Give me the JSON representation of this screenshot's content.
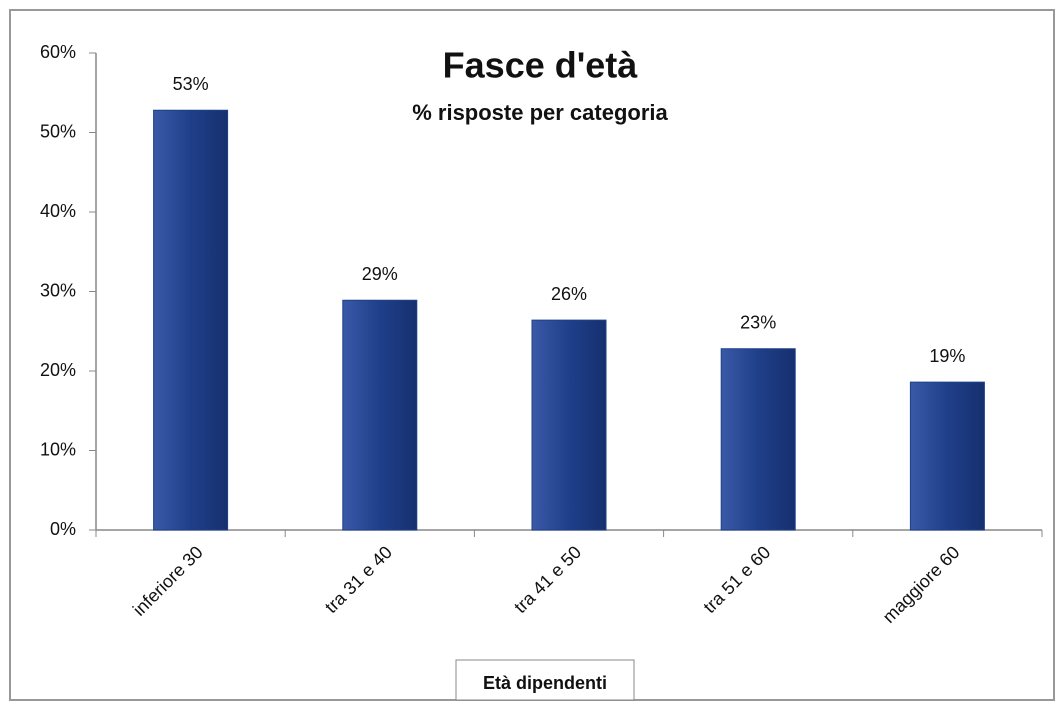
{
  "chart_data": {
    "type": "bar",
    "title": "Fasce d'età",
    "subtitle": "% risposte per categoria",
    "x_label": "Età dipendenti",
    "categories": [
      "inferiore 30",
      "tra 31 e 40",
      "tra 41 e 50",
      "tra 51 e 60",
      "maggiore 60"
    ],
    "values": [
      52.8,
      28.9,
      26.4,
      22.8,
      18.6
    ],
    "value_labels": [
      "53%",
      "29%",
      "26%",
      "23%",
      "19%"
    ],
    "color": "#1f3f8a",
    "ylim": [
      0,
      60
    ],
    "yticks": [
      {
        "value": 0,
        "label": "0%"
      },
      {
        "value": 10,
        "label": "10%"
      },
      {
        "value": 20,
        "label": "20%"
      },
      {
        "value": 30,
        "label": "30%"
      },
      {
        "value": 40,
        "label": "40%"
      },
      {
        "value": 50,
        "label": "50%"
      },
      {
        "value": 60,
        "label": "60%"
      }
    ],
    "grid": false
  }
}
